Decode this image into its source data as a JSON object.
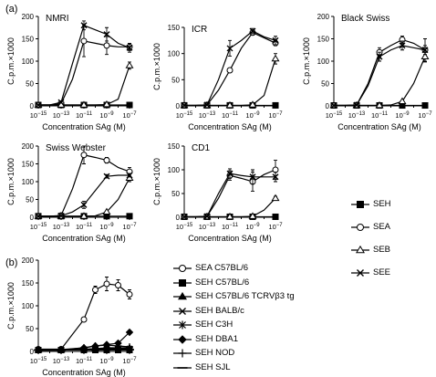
{
  "figure": {
    "panel_a_label": "(a)",
    "panel_b_label": "(b)"
  },
  "legend_a": [
    {
      "label": "SEH",
      "symbol": "square-filled"
    },
    {
      "label": "SEA",
      "symbol": "circle-open"
    },
    {
      "label": "SEB",
      "symbol": "triangle-open"
    },
    {
      "label": "SEE",
      "symbol": "x-cross"
    }
  ],
  "legend_b": [
    {
      "label": "SEA C57BL/6",
      "symbol": "circle-open"
    },
    {
      "label": "SEH C57BL/6",
      "symbol": "square-filled"
    },
    {
      "label": "SEH C57BL/6 TCRVβ3 tg",
      "symbol": "triangle-filled"
    },
    {
      "label": "SEH BALB/c",
      "symbol": "x-cross"
    },
    {
      "label": "SEH C3H",
      "symbol": "asterisk"
    },
    {
      "label": "SEH DBA1",
      "symbol": "diamond-filled"
    },
    {
      "label": "SEH NOD",
      "symbol": "plus"
    },
    {
      "label": "SEH SJL",
      "symbol": "dash"
    }
  ],
  "chart_data": [
    {
      "type": "line",
      "id": "nmri",
      "title": "NMRI",
      "xlabel": "Concentration SAg (M)",
      "ylabel": "C.p.m.×1000",
      "x_exponents": [
        -15,
        -13,
        -11,
        -9,
        -7
      ],
      "xlim_log": [
        -15,
        -7
      ],
      "ylim": [
        0,
        200
      ],
      "yticks": [
        0,
        50,
        100,
        150,
        200
      ],
      "series": [
        {
          "name": "SEH",
          "symbol": "square-filled",
          "x": [
            -15,
            -14,
            -13,
            -12,
            -11,
            -10,
            -9,
            -8,
            -7
          ],
          "y": [
            2,
            2,
            2,
            2,
            2,
            2,
            2,
            2,
            2
          ]
        },
        {
          "name": "SEA",
          "symbol": "circle-open",
          "x": [
            -15,
            -14,
            -13,
            -12,
            -11,
            -10,
            -9,
            -8,
            -7
          ],
          "y": [
            2,
            2,
            5,
            60,
            145,
            140,
            135,
            132,
            132
          ],
          "err": [
            0,
            0,
            0,
            0,
            35,
            0,
            20,
            0,
            8
          ]
        },
        {
          "name": "SEB",
          "symbol": "triangle-open",
          "x": [
            -15,
            -14,
            -13,
            -12,
            -11,
            -10,
            -9,
            -8,
            -7
          ],
          "y": [
            2,
            2,
            2,
            2,
            2,
            2,
            3,
            15,
            90
          ],
          "err": [
            0,
            0,
            0,
            0,
            0,
            0,
            0,
            0,
            8
          ]
        },
        {
          "name": "SEE",
          "symbol": "x-cross",
          "x": [
            -15,
            -14,
            -13,
            -12,
            -11,
            -10,
            -9,
            -8,
            -7
          ],
          "y": [
            2,
            2,
            8,
            95,
            180,
            170,
            160,
            140,
            130
          ],
          "err": [
            0,
            0,
            0,
            0,
            10,
            0,
            15,
            0,
            10
          ]
        }
      ]
    },
    {
      "type": "line",
      "id": "icr",
      "title": "ICR",
      "xlabel": "Concentration SAg (M)",
      "ylabel": "C.p.m.×1000",
      "x_exponents": [
        -15,
        -13,
        -11,
        -9,
        -7
      ],
      "xlim_log": [
        -15,
        -7
      ],
      "ylim": [
        0,
        150
      ],
      "yticks": [
        0,
        50,
        100,
        150
      ],
      "series": [
        {
          "name": "SEH",
          "symbol": "square-filled",
          "x": [
            -15,
            -14,
            -13,
            -12,
            -11,
            -10,
            -9,
            -8,
            -7
          ],
          "y": [
            1,
            1,
            1,
            1,
            1,
            1,
            1,
            1,
            1
          ]
        },
        {
          "name": "SEA",
          "symbol": "circle-open",
          "x": [
            -15,
            -14,
            -13,
            -12,
            -11,
            -10,
            -9,
            -8,
            -7
          ],
          "y": [
            1,
            1,
            2,
            30,
            68,
            110,
            140,
            130,
            120
          ],
          "err": [
            0,
            0,
            0,
            0,
            0,
            0,
            5,
            0,
            5
          ]
        },
        {
          "name": "SEB",
          "symbol": "triangle-open",
          "x": [
            -15,
            -14,
            -13,
            -12,
            -11,
            -10,
            -9,
            -8,
            -7
          ],
          "y": [
            1,
            1,
            1,
            1,
            1,
            1,
            2,
            20,
            90
          ],
          "err": [
            0,
            0,
            0,
            0,
            0,
            0,
            0,
            0,
            10
          ]
        },
        {
          "name": "SEE",
          "symbol": "x-cross",
          "x": [
            -15,
            -14,
            -13,
            -12,
            -11,
            -10,
            -9,
            -8,
            -7
          ],
          "y": [
            1,
            1,
            2,
            50,
            110,
            125,
            143,
            132,
            125
          ],
          "err": [
            0,
            0,
            0,
            0,
            15,
            0,
            5,
            0,
            8
          ]
        }
      ]
    },
    {
      "type": "line",
      "id": "black-swiss",
      "title": "Black Swiss",
      "xlabel": "Concentration SAg (M)",
      "ylabel": "C.p.m.×1000",
      "x_exponents": [
        -15,
        -13,
        -11,
        -9,
        -7
      ],
      "xlim_log": [
        -15,
        -7
      ],
      "ylim": [
        0,
        200
      ],
      "yticks": [
        0,
        50,
        100,
        150,
        200
      ],
      "series": [
        {
          "name": "SEH",
          "symbol": "square-filled",
          "x": [
            -15,
            -14,
            -13,
            -12,
            -11,
            -10,
            -9,
            -8,
            -7
          ],
          "y": [
            1,
            1,
            1,
            1,
            1,
            1,
            1,
            1,
            1
          ]
        },
        {
          "name": "SEA",
          "symbol": "circle-open",
          "x": [
            -15,
            -14,
            -13,
            -12,
            -11,
            -10,
            -9,
            -8,
            -7
          ],
          "y": [
            1,
            1,
            2,
            50,
            120,
            135,
            148,
            140,
            125
          ],
          "err": [
            0,
            0,
            0,
            0,
            10,
            0,
            8,
            0,
            25
          ]
        },
        {
          "name": "SEB",
          "symbol": "triangle-open",
          "x": [
            -15,
            -14,
            -13,
            -12,
            -11,
            -10,
            -9,
            -8,
            -7
          ],
          "y": [
            1,
            1,
            1,
            1,
            1,
            2,
            10,
            50,
            110
          ],
          "err": [
            0,
            0,
            0,
            0,
            0,
            0,
            0,
            0,
            12
          ]
        },
        {
          "name": "SEE",
          "symbol": "x-cross",
          "x": [
            -15,
            -14,
            -13,
            -12,
            -11,
            -10,
            -9,
            -8,
            -7
          ],
          "y": [
            1,
            1,
            2,
            45,
            110,
            125,
            135,
            130,
            125
          ],
          "err": [
            0,
            0,
            0,
            0,
            10,
            0,
            10,
            0,
            10
          ]
        }
      ]
    },
    {
      "type": "line",
      "id": "swiss-webster",
      "title": "Swiss Webster",
      "xlabel": "Concentration SAg (M)",
      "ylabel": "C.p.m.×1000",
      "x_exponents": [
        -15,
        -13,
        -11,
        -9,
        -7
      ],
      "xlim_log": [
        -15,
        -7
      ],
      "ylim": [
        0,
        200
      ],
      "yticks": [
        0,
        50,
        100,
        150,
        200
      ],
      "series": [
        {
          "name": "SEH",
          "symbol": "square-filled",
          "x": [
            -15,
            -14,
            -13,
            -12,
            -11,
            -10,
            -9,
            -8,
            -7
          ],
          "y": [
            3,
            3,
            3,
            3,
            3,
            3,
            3,
            3,
            3
          ]
        },
        {
          "name": "SEA",
          "symbol": "circle-open",
          "x": [
            -15,
            -14,
            -13,
            -12,
            -11,
            -10,
            -9,
            -8,
            -7
          ],
          "y": [
            3,
            3,
            5,
            80,
            175,
            168,
            160,
            140,
            128
          ],
          "err": [
            0,
            0,
            0,
            0,
            25,
            0,
            8,
            0,
            12
          ]
        },
        {
          "name": "SEB",
          "symbol": "triangle-open",
          "x": [
            -15,
            -14,
            -13,
            -12,
            -11,
            -10,
            -9,
            -8,
            -7
          ],
          "y": [
            3,
            3,
            3,
            3,
            3,
            4,
            15,
            50,
            110
          ],
          "err": [
            0,
            0,
            0,
            0,
            0,
            0,
            0,
            0,
            10
          ]
        },
        {
          "name": "SEE",
          "symbol": "x-cross",
          "x": [
            -15,
            -14,
            -13,
            -12,
            -11,
            -10,
            -9,
            -8,
            -7
          ],
          "y": [
            3,
            3,
            4,
            15,
            35,
            75,
            115,
            118,
            118
          ],
          "err": [
            0,
            0,
            0,
            0,
            10,
            0,
            5,
            0,
            5
          ]
        }
      ]
    },
    {
      "type": "line",
      "id": "cd1",
      "title": "CD1",
      "xlabel": "Concentration SAg (M)",
      "ylabel": "C.p.m.×1000",
      "x_exponents": [
        -15,
        -13,
        -11,
        -9,
        -7
      ],
      "xlim_log": [
        -15,
        -7
      ],
      "ylim": [
        0,
        150
      ],
      "yticks": [
        0,
        50,
        100,
        150
      ],
      "series": [
        {
          "name": "SEH",
          "symbol": "square-filled",
          "x": [
            -15,
            -14,
            -13,
            -12,
            -11,
            -10,
            -9,
            -8,
            -7
          ],
          "y": [
            1,
            1,
            1,
            1,
            1,
            1,
            1,
            1,
            1
          ]
        },
        {
          "name": "SEA",
          "symbol": "circle-open",
          "x": [
            -15,
            -14,
            -13,
            -12,
            -11,
            -10,
            -9,
            -8,
            -7
          ],
          "y": [
            1,
            1,
            2,
            40,
            88,
            82,
            75,
            90,
            100
          ],
          "err": [
            0,
            0,
            0,
            0,
            10,
            0,
            20,
            0,
            20
          ]
        },
        {
          "name": "SEB",
          "symbol": "triangle-open",
          "x": [
            -15,
            -14,
            -13,
            -12,
            -11,
            -10,
            -9,
            -8,
            -7
          ],
          "y": [
            1,
            1,
            1,
            1,
            1,
            1,
            2,
            15,
            40
          ],
          "err": [
            0,
            0,
            0,
            0,
            0,
            0,
            0,
            0,
            4
          ]
        },
        {
          "name": "SEE",
          "symbol": "x-cross",
          "x": [
            -15,
            -14,
            -13,
            -12,
            -11,
            -10,
            -9,
            -8,
            -7
          ],
          "y": [
            1,
            1,
            2,
            50,
            92,
            88,
            85,
            85,
            85
          ],
          "err": [
            0,
            0,
            0,
            0,
            10,
            0,
            15,
            0,
            10
          ]
        }
      ]
    },
    {
      "type": "line",
      "id": "panel-b",
      "title": "",
      "xlabel": "Concentration SAg (M)",
      "ylabel": "C.p.m.×1000",
      "x_exponents": [
        -15,
        -13,
        -11,
        -9,
        -7
      ],
      "xlim_log": [
        -15,
        -7
      ],
      "ylim": [
        0,
        200
      ],
      "yticks": [
        0,
        50,
        100,
        150,
        200
      ],
      "series": [
        {
          "name": "SEA C57BL/6",
          "symbol": "circle-open",
          "x": [
            -15,
            -13,
            -11,
            -10,
            -9,
            -8,
            -7
          ],
          "y": [
            5,
            5,
            70,
            135,
            148,
            145,
            125
          ],
          "err": [
            0,
            0,
            5,
            8,
            15,
            12,
            10
          ]
        },
        {
          "name": "SEH C57BL/6",
          "symbol": "square-filled",
          "x": [
            -15,
            -13,
            -11,
            -10,
            -9,
            -8,
            -7
          ],
          "y": [
            3,
            3,
            3,
            3,
            3,
            3,
            3
          ]
        },
        {
          "name": "SEH C57BL/6 TCRVβ3 tg",
          "symbol": "triangle-filled",
          "x": [
            -15,
            -13,
            -11,
            -10,
            -9,
            -8,
            -7
          ],
          "y": [
            3,
            3,
            5,
            6,
            8,
            8,
            8
          ]
        },
        {
          "name": "SEH BALB/c",
          "symbol": "x-cross",
          "x": [
            -15,
            -13,
            -11,
            -10,
            -9,
            -8,
            -7
          ],
          "y": [
            3,
            3,
            4,
            5,
            6,
            6,
            6
          ]
        },
        {
          "name": "SEH C3H",
          "symbol": "asterisk",
          "x": [
            -15,
            -13,
            -11,
            -10,
            -9,
            -8,
            -7
          ],
          "y": [
            3,
            3,
            4,
            4,
            5,
            5,
            5
          ]
        },
        {
          "name": "SEH DBA1",
          "symbol": "diamond-filled",
          "x": [
            -15,
            -13,
            -11,
            -10,
            -9,
            -8,
            -7
          ],
          "y": [
            4,
            4,
            8,
            12,
            15,
            18,
            42
          ]
        },
        {
          "name": "SEH NOD",
          "symbol": "plus",
          "x": [
            -15,
            -13,
            -11,
            -10,
            -9,
            -8,
            -7
          ],
          "y": [
            3,
            3,
            8,
            12,
            14,
            12,
            10
          ]
        },
        {
          "name": "SEH SJL",
          "symbol": "dash",
          "x": [
            -15,
            -13,
            -11,
            -10,
            -9,
            -8,
            -7
          ],
          "y": [
            3,
            3,
            4,
            4,
            4,
            4,
            4
          ]
        }
      ]
    }
  ]
}
